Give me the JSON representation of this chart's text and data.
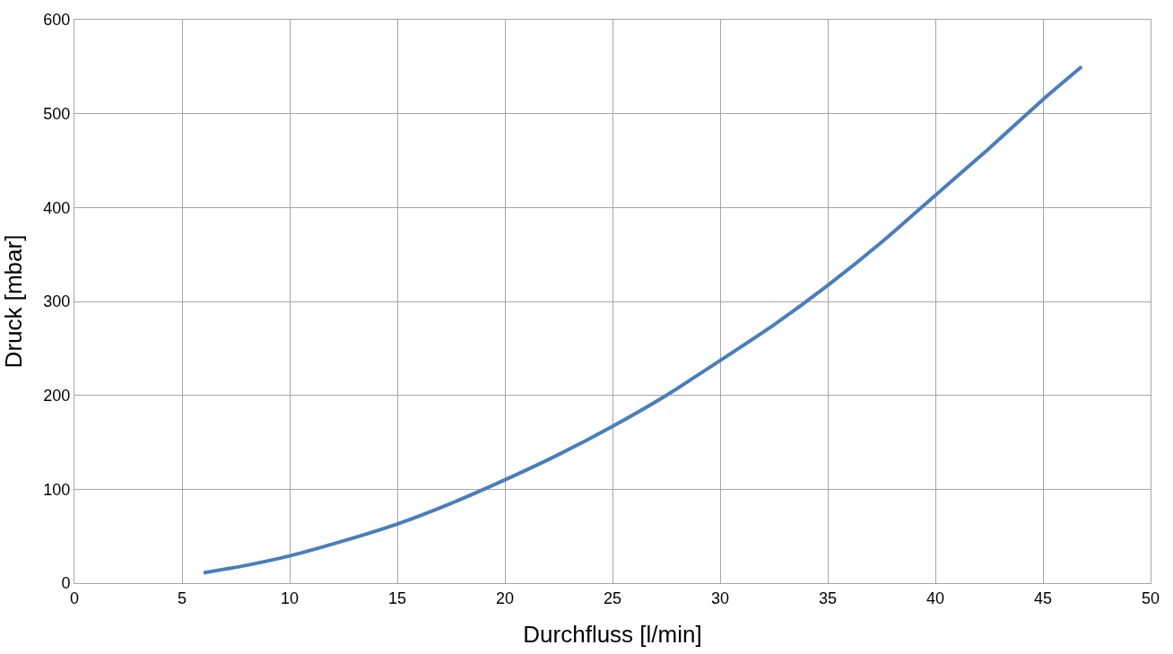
{
  "chart_data": {
    "type": "line",
    "xlabel": "Durchfluss [l/min]",
    "ylabel": "Druck [mbar]",
    "x": [
      6,
      8,
      10,
      12.5,
      15,
      17.5,
      20,
      22.5,
      25,
      27.5,
      30,
      32.5,
      35,
      37.5,
      40,
      42.5,
      45,
      46.8
    ],
    "series": [
      {
        "color": "#4a7ebb",
        "values": [
          11,
          19,
          29,
          45,
          63,
          85,
          110,
          137,
          167,
          200,
          237,
          275,
          317,
          363,
          413,
          463,
          515,
          550
        ]
      }
    ],
    "xlim": [
      0,
      50
    ],
    "xticks": [
      0,
      5,
      10,
      15,
      20,
      25,
      30,
      35,
      40,
      45,
      50
    ],
    "ylim": [
      0,
      600
    ],
    "yticks": [
      0,
      100,
      200,
      300,
      400,
      500,
      600
    ],
    "grid": true,
    "marker": "none",
    "line_style": "solid"
  }
}
